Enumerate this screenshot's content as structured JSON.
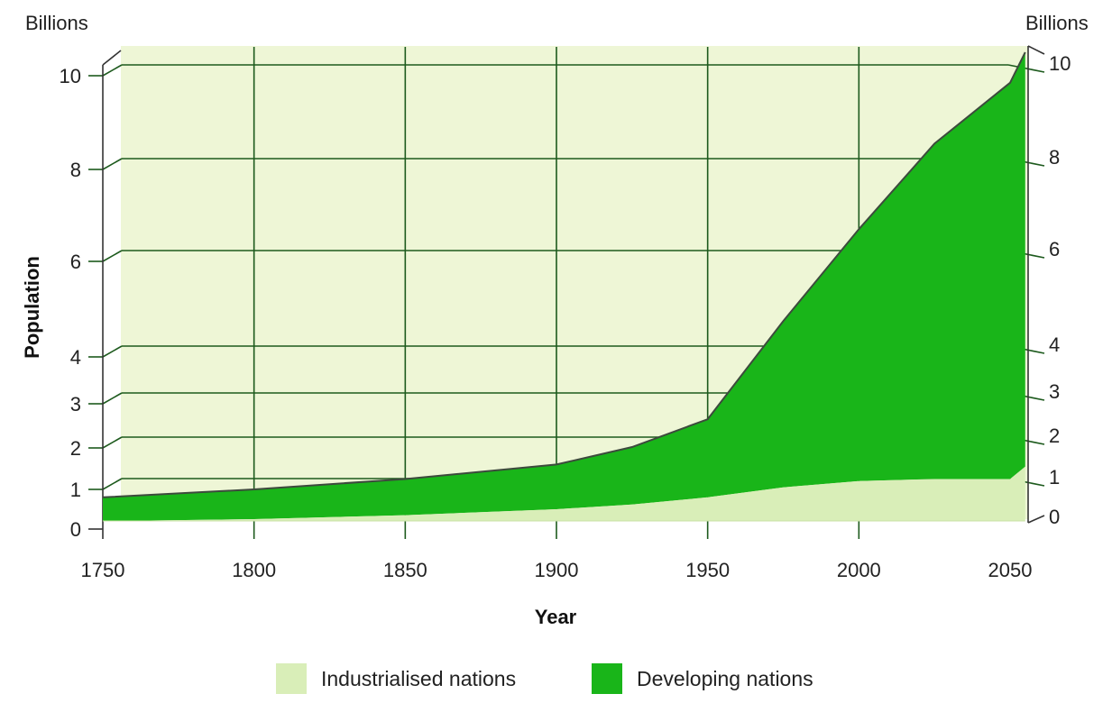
{
  "chart_data": {
    "type": "area",
    "stacked": true,
    "xlabel": "Year",
    "ylabel": "Population",
    "unit_left": "Billions",
    "unit_right": "Billions",
    "x_ticks": [
      1750,
      1800,
      1850,
      1900,
      1950,
      2000,
      2050
    ],
    "y_ticks": [
      0,
      1,
      2,
      3,
      4,
      6,
      8,
      10
    ],
    "y_scale": "non-linear (compressed below 4 billion)",
    "xlim": [
      1750,
      2055
    ],
    "ylim": [
      0,
      10.5
    ],
    "grid": true,
    "legend_position": "bottom",
    "x": [
      1750,
      1800,
      1850,
      1900,
      1925,
      1950,
      1975,
      2000,
      2025,
      2050,
      2055
    ],
    "series": [
      {
        "name": "Industrialised nations",
        "color": "#d9eeb8",
        "values": [
          0.2,
          0.25,
          0.35,
          0.5,
          0.62,
          0.8,
          1.05,
          1.2,
          1.25,
          1.25,
          1.55
        ]
      },
      {
        "name": "Developing nations",
        "color": "#19b519",
        "values": [
          0.6,
          0.75,
          0.9,
          1.1,
          1.4,
          1.85,
          3.7,
          5.5,
          7.3,
          8.6,
          8.95
        ]
      }
    ]
  },
  "legend": {
    "industrialised_label": "Industrialised nations",
    "developing_label": "Developing nations"
  },
  "colors": {
    "industrialised": "#d9eeb8",
    "developing": "#19b519",
    "plot_background": "#eef6d6",
    "gridline": "#1d5a1d"
  }
}
